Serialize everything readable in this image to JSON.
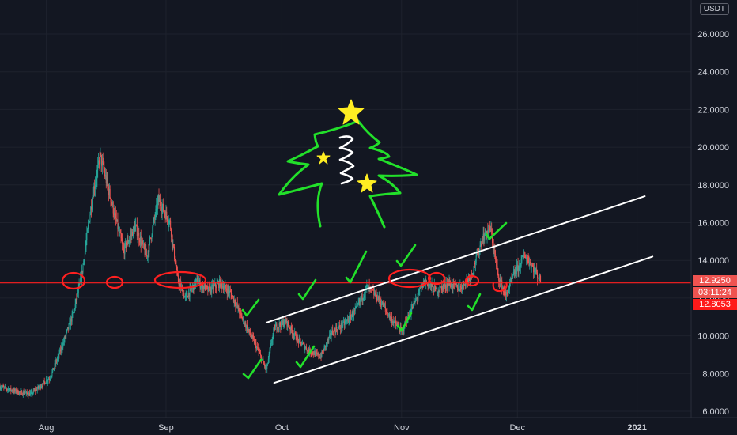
{
  "unit": "USDT",
  "colors": {
    "background": "#131722",
    "up": "#26a69a",
    "down": "#ef5350",
    "level_line": "#ff2020",
    "channel": "#ffffff",
    "drawing_green": "#22e02a",
    "drawing_yellow": "#ffee22",
    "badge_price": "#ef5350",
    "badge_red": "#ff1a1a"
  },
  "badges": {
    "last_price": "12.9250",
    "countdown": "03:11:24",
    "level": "12.8053"
  },
  "chart_data": {
    "type": "candlestick",
    "ylim": [
      6.0,
      27.0
    ],
    "y_ticks": [
      "6.0000",
      "8.0000",
      "10.0000",
      "12.0000",
      "14.0000",
      "16.0000",
      "18.0000",
      "20.0000",
      "22.0000",
      "24.0000",
      "26.0000"
    ],
    "x_ticks": [
      {
        "label": "Aug",
        "date": "2020-08-01",
        "bold": false
      },
      {
        "label": "Sep",
        "date": "2020-09-01",
        "bold": false
      },
      {
        "label": "Oct",
        "date": "2020-10-01",
        "bold": false
      },
      {
        "label": "Nov",
        "date": "2020-11-01",
        "bold": false
      },
      {
        "label": "Dec",
        "date": "2020-12-01",
        "bold": false
      },
      {
        "label": "2021",
        "date": "2021-01-01",
        "bold": true
      }
    ],
    "x_range": [
      "2020-07-20",
      "2021-01-15"
    ],
    "price_path": [
      [
        "2020-07-20",
        7.3
      ],
      [
        "2020-07-25",
        7.0
      ],
      [
        "2020-07-28",
        6.9
      ],
      [
        "2020-08-02",
        7.8
      ],
      [
        "2020-08-05",
        9.4
      ],
      [
        "2020-08-08",
        11.2
      ],
      [
        "2020-08-10",
        13.0
      ],
      [
        "2020-08-13",
        17.5
      ],
      [
        "2020-08-15",
        19.5
      ],
      [
        "2020-08-18",
        17.0
      ],
      [
        "2020-08-21",
        14.5
      ],
      [
        "2020-08-24",
        15.8
      ],
      [
        "2020-08-27",
        14.2
      ],
      [
        "2020-08-30",
        17.2
      ],
      [
        "2020-09-02",
        16.0
      ],
      [
        "2020-09-04",
        13.0
      ],
      [
        "2020-09-06",
        12.0
      ],
      [
        "2020-09-09",
        12.9
      ],
      [
        "2020-09-12",
        12.4
      ],
      [
        "2020-09-15",
        12.8
      ],
      [
        "2020-09-18",
        12.2
      ],
      [
        "2020-09-21",
        10.8
      ],
      [
        "2020-09-24",
        9.6
      ],
      [
        "2020-09-27",
        8.2
      ],
      [
        "2020-09-29",
        10.4
      ],
      [
        "2020-10-02",
        10.8
      ],
      [
        "2020-10-05",
        9.8
      ],
      [
        "2020-10-08",
        9.2
      ],
      [
        "2020-10-11",
        8.9
      ],
      [
        "2020-10-14",
        10.2
      ],
      [
        "2020-10-17",
        10.6
      ],
      [
        "2020-10-20",
        11.3
      ],
      [
        "2020-10-23",
        12.6
      ],
      [
        "2020-10-26",
        12.0
      ],
      [
        "2020-10-29",
        11.0
      ],
      [
        "2020-11-01",
        10.2
      ],
      [
        "2020-11-04",
        11.6
      ],
      [
        "2020-11-07",
        12.9
      ],
      [
        "2020-11-10",
        12.4
      ],
      [
        "2020-11-13",
        12.8
      ],
      [
        "2020-11-16",
        12.5
      ],
      [
        "2020-11-19",
        13.2
      ],
      [
        "2020-11-22",
        15.2
      ],
      [
        "2020-11-24",
        15.7
      ],
      [
        "2020-11-26",
        13.2
      ],
      [
        "2020-11-28",
        12.1
      ],
      [
        "2020-11-30",
        13.2
      ],
      [
        "2020-12-03",
        14.3
      ],
      [
        "2020-12-06",
        13.3
      ],
      [
        "2020-12-07",
        12.9
      ]
    ],
    "hline": {
      "value": 12.8053,
      "label": "12.8053"
    },
    "channel": {
      "upper": [
        [
          "2020-09-27",
          10.7
        ],
        [
          "2021-01-03",
          17.4
        ]
      ],
      "lower": [
        [
          "2020-09-29",
          7.5
        ],
        [
          "2021-01-05",
          14.2
        ]
      ]
    }
  }
}
